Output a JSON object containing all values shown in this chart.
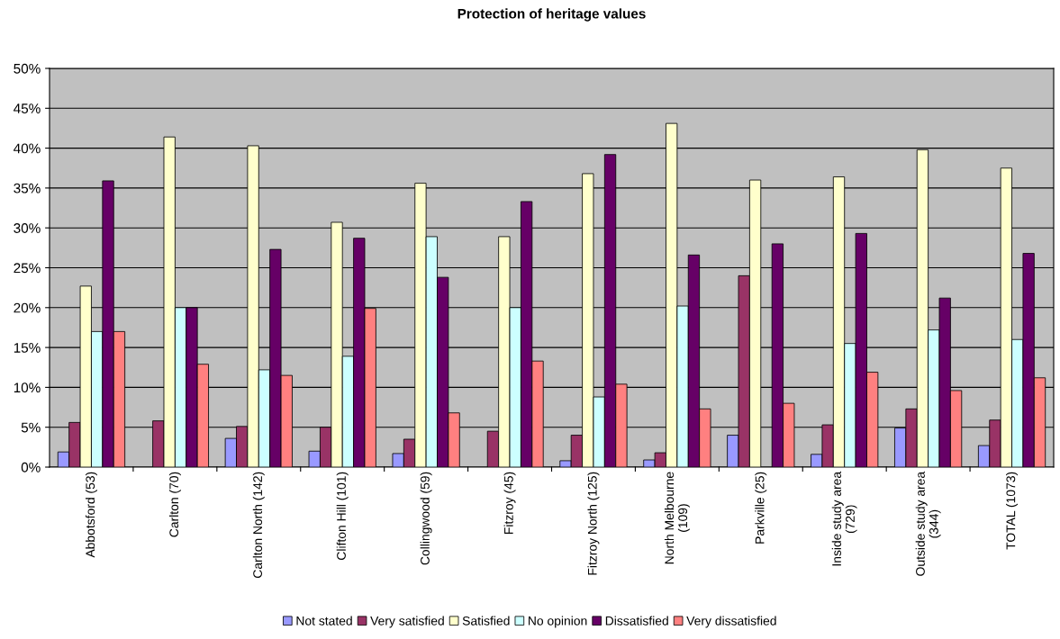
{
  "chart_data": {
    "type": "bar",
    "title": "Protection of heritage values",
    "categories": [
      "Abbotsford (53)",
      "Carlton (70)",
      "Carlton North (142)",
      "Clifton Hill (101)",
      "Collingwood (59)",
      "Fitzroy (45)",
      "Fitzroy North (125)",
      "North Melbourne\n(109)",
      "Parkville (25)",
      "Inside study area\n(729)",
      "Outside study area\n(344)",
      "TOTAL (1073)"
    ],
    "series": [
      {
        "name": "Not stated",
        "color": "#9999ff",
        "values": [
          1.9,
          null,
          3.6,
          2.0,
          1.7,
          null,
          0.8,
          0.9,
          4.0,
          1.6,
          4.9,
          2.7
        ]
      },
      {
        "name": "Very satisfied",
        "color": "#993366",
        "values": [
          5.6,
          5.8,
          5.1,
          5.0,
          3.5,
          4.5,
          4.0,
          1.8,
          24.0,
          5.3,
          7.3,
          5.9
        ]
      },
      {
        "name": "Satisfied",
        "color": "#ffffcc",
        "values": [
          22.7,
          41.4,
          40.3,
          30.7,
          35.6,
          28.9,
          36.8,
          43.1,
          36.0,
          36.4,
          39.8,
          37.5
        ]
      },
      {
        "name": "No opinion",
        "color": "#ccffff",
        "values": [
          17.0,
          20.0,
          12.2,
          13.9,
          28.9,
          20.0,
          8.8,
          20.2,
          null,
          15.5,
          17.2,
          16.0
        ]
      },
      {
        "name": "Dissatisfied",
        "color": "#660066",
        "values": [
          35.9,
          20.0,
          27.3,
          28.7,
          23.8,
          33.3,
          39.2,
          26.6,
          28.0,
          29.3,
          21.2,
          26.8
        ]
      },
      {
        "name": "Very dissatisfied",
        "color": "#ff8080",
        "values": [
          17.0,
          12.9,
          11.5,
          19.9,
          6.8,
          13.3,
          10.4,
          7.3,
          8.0,
          11.9,
          9.6,
          11.2
        ]
      }
    ],
    "ylim": [
      0,
      50
    ],
    "yticks": [
      {
        "value": 0,
        "label": "0%"
      },
      {
        "value": 5,
        "label": "5%"
      },
      {
        "value": 10,
        "label": "10%"
      },
      {
        "value": 15,
        "label": "15%"
      },
      {
        "value": 20,
        "label": "20%"
      },
      {
        "value": 25,
        "label": "25%"
      },
      {
        "value": 30,
        "label": "30%"
      },
      {
        "value": 35,
        "label": "35%"
      },
      {
        "value": 40,
        "label": "40%"
      },
      {
        "value": 45,
        "label": "45%"
      },
      {
        "value": 50,
        "label": "50%"
      }
    ],
    "grid": "y",
    "legend": "bottom"
  }
}
